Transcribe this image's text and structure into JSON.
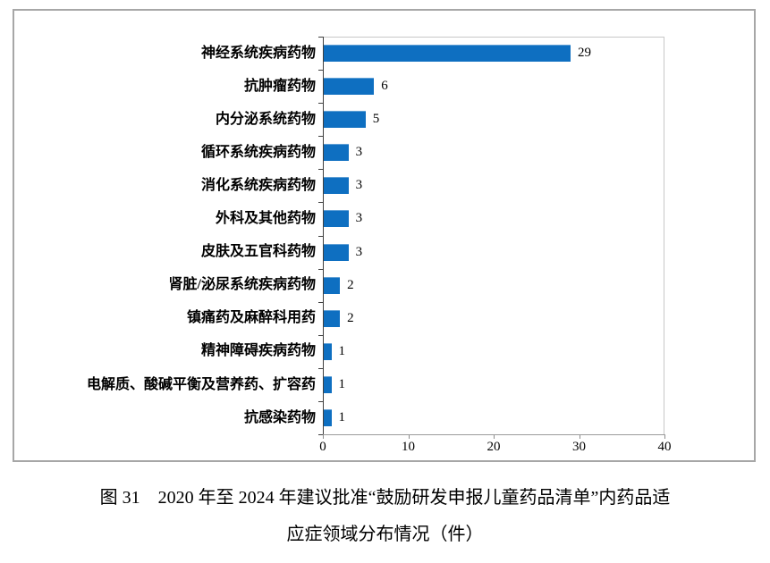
{
  "figure": {
    "caption_line1": "图 31　2020 年至 2024 年建议批准“鼓励研发申报儿童药品清单”内药品适",
    "caption_line2": "应症领域分布情况（件）"
  },
  "chart_data": {
    "type": "bar",
    "orientation": "horizontal",
    "title": "",
    "xlabel": "",
    "ylabel": "",
    "categories": [
      "神经系统疾病药物",
      "抗肿瘤药物",
      "内分泌系统药物",
      "循环系统疾病药物",
      "消化系统疾病药物",
      "外科及其他药物",
      "皮肤及五官科药物",
      "肾脏/泌尿系统疾病药物",
      "镇痛药及麻醉科用药",
      "精神障碍疾病药物",
      "电解质、酸碱平衡及营养药、扩容药",
      "抗感染药物"
    ],
    "values": [
      29,
      6,
      5,
      3,
      3,
      3,
      3,
      2,
      2,
      1,
      1,
      1
    ],
    "xlim": [
      0,
      40
    ],
    "x_ticks": [
      0,
      10,
      20,
      30,
      40
    ],
    "grid": false,
    "legend": "none",
    "data_labels": true,
    "bar_color": "#0e6fc1",
    "frame_border_color": "#a7a7a7",
    "plot_border_color": "#c8c8c8"
  }
}
